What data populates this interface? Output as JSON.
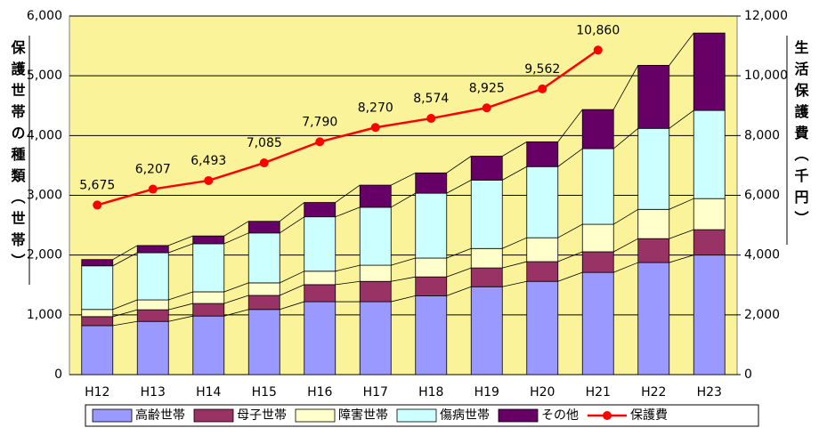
{
  "chart_data": {
    "type": "bar",
    "stacked": true,
    "y_title": "保護世帯の種類（世帯）",
    "y2_title": "生活保護費（千円）",
    "categories": [
      "H12",
      "H13",
      "H14",
      "H15",
      "H16",
      "H17",
      "H18",
      "H19",
      "H20",
      "H21",
      "H22",
      "H23"
    ],
    "series": [
      {
        "name": "高齢世帯",
        "color": "#9999ff",
        "values": [
          820,
          890,
          980,
          1090,
          1220,
          1220,
          1320,
          1470,
          1560,
          1710,
          1875,
          2000
        ]
      },
      {
        "name": "母子世帯",
        "color": "#993366",
        "values": [
          150,
          195,
          210,
          235,
          285,
          340,
          315,
          315,
          330,
          345,
          400,
          425
        ]
      },
      {
        "name": "障害世帯",
        "color": "#ffffcc",
        "values": [
          120,
          165,
          195,
          210,
          225,
          270,
          315,
          325,
          400,
          460,
          490,
          520
        ]
      },
      {
        "name": "傷病世帯",
        "color": "#ccffff",
        "values": [
          730,
          790,
          805,
          835,
          910,
          970,
          1085,
          1145,
          1190,
          1265,
          1355,
          1475
        ]
      },
      {
        "name": "その他",
        "color": "#660066",
        "values": [
          105,
          120,
          130,
          195,
          240,
          370,
          340,
          400,
          415,
          655,
          1055,
          1295
        ]
      },
      {
        "name": "保護費",
        "color": "#ff0000",
        "type": "line",
        "axis": "y2",
        "values": [
          5675,
          6207,
          6493,
          7085,
          7790,
          8270,
          8574,
          8925,
          9562,
          10860,
          null,
          null
        ],
        "value_labels": [
          "5,675",
          "6,207",
          "6,493",
          "7,085",
          "7,790",
          "8,270",
          "8,574",
          "8,925",
          "9,562",
          "10,860",
          null,
          null
        ]
      }
    ],
    "ylim": [
      0,
      6000
    ],
    "yticks": [
      0,
      {
        "value": 1000,
        "label": "1,000"
      },
      {
        "value": 2000,
        "label": "2,000"
      },
      {
        "value": 3000,
        "label": "3,000"
      },
      {
        "value": 4000,
        "label": "4,000"
      },
      {
        "value": 5000,
        "label": "5,000"
      },
      {
        "value": 6000,
        "label": "6,000"
      }
    ],
    "y2lim": [
      0,
      12000
    ],
    "y2ticks": [
      0,
      {
        "value": 2000,
        "label": "2,000"
      },
      {
        "value": 4000,
        "label": "4,000"
      },
      {
        "value": 6000,
        "label": "6,000"
      },
      {
        "value": 8000,
        "label": "8,000"
      },
      {
        "value": 10000,
        "label": "10,000"
      },
      {
        "value": 12000,
        "label": "12,000"
      }
    ],
    "grid": true,
    "legend": "bottom",
    "plot_background": "#faf39a"
  }
}
